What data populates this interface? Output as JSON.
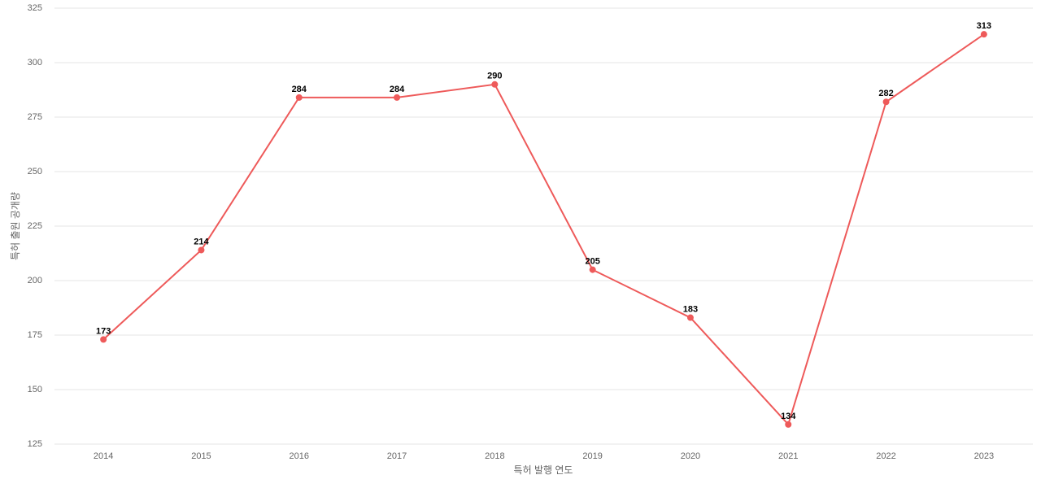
{
  "chart_data": {
    "type": "line",
    "x_label": "특허 발행 연도",
    "y_label": "특허 출원 공개량",
    "categories": [
      "2014",
      "2015",
      "2016",
      "2017",
      "2018",
      "2019",
      "2020",
      "2021",
      "2022",
      "2023"
    ],
    "series": [
      {
        "color": "#ee5a5a",
        "values": [
          173,
          214,
          284,
          284,
          290,
          205,
          183,
          134,
          282,
          313
        ]
      }
    ],
    "ylim": [
      125,
      325
    ],
    "yticks": [
      125,
      150,
      175,
      200,
      225,
      250,
      275,
      300,
      325
    ],
    "grid": true
  }
}
